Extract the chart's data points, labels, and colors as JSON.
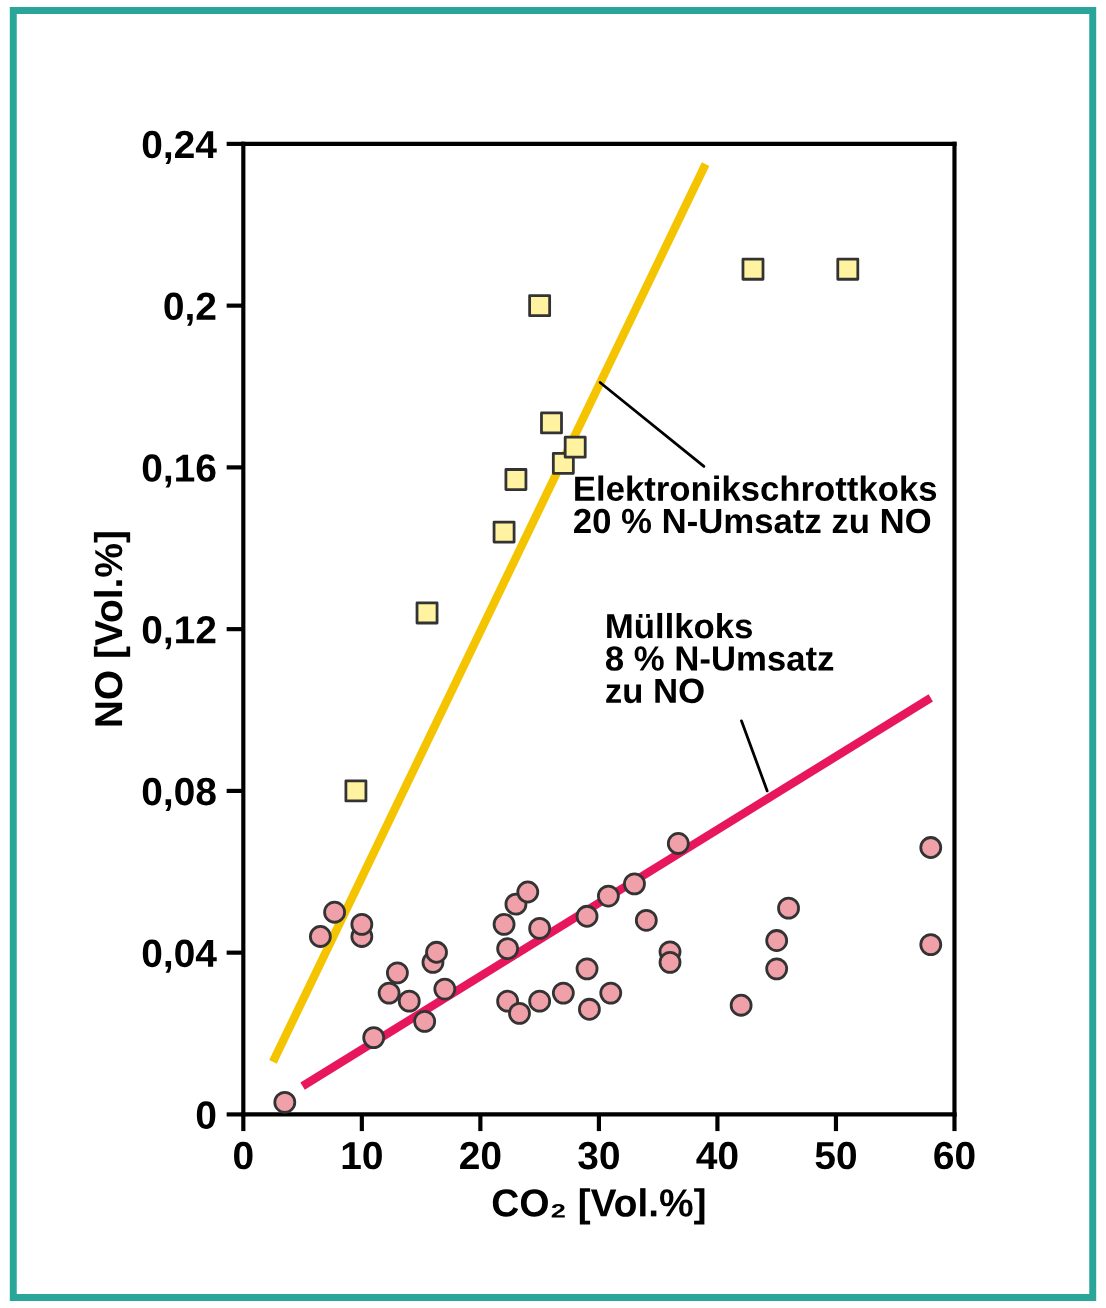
{
  "chart_data": {
    "type": "scatter",
    "xlabel": "CO₂ [Vol.%]",
    "ylabel": "NO [Vol.%]",
    "xlim": [
      0,
      60
    ],
    "ylim": [
      0,
      0.24
    ],
    "xticks": [
      0,
      10,
      20,
      30,
      40,
      50,
      60
    ],
    "yticks": [
      0,
      {
        "value": 0.04,
        "label": "0,04"
      },
      {
        "value": 0.08,
        "label": "0,08"
      },
      {
        "value": 0.12,
        "label": "0,12"
      },
      {
        "value": 0.16,
        "label": "0,16"
      },
      {
        "value": 0.2,
        "label": "0,2"
      },
      {
        "value": 0.24,
        "label": "0,24"
      }
    ],
    "grid": false,
    "legend": false,
    "series": [
      {
        "type": "line",
        "color": "#f5c400",
        "x": [
          2.5,
          39
        ],
        "values": [
          0.013,
          0.235
        ],
        "marker": "none"
      },
      {
        "type": "line",
        "color": "#e8175d",
        "x": [
          5,
          58
        ],
        "values": [
          0.007,
          0.103
        ],
        "marker": "none"
      },
      {
        "color": "#fff2a0",
        "marker": "square",
        "x": [
          9.5,
          15.5,
          22,
          23,
          25,
          26,
          27,
          28,
          43,
          51
        ],
        "values": [
          0.08,
          0.124,
          0.144,
          0.157,
          0.2,
          0.171,
          0.161,
          0.165,
          0.209,
          0.209
        ]
      },
      {
        "color": "#f0a0a8",
        "marker": "circle",
        "x": [
          3.5,
          6.5,
          7.7,
          10,
          10,
          11,
          12.3,
          13,
          14,
          15.3,
          16,
          16.3,
          17,
          22,
          22.3,
          22.3,
          23,
          23.3,
          24,
          25,
          25,
          27,
          29,
          29,
          29.2,
          30.8,
          31,
          33,
          34,
          36,
          36,
          36.7,
          42,
          45,
          45,
          46,
          58,
          58
        ],
        "values": [
          0.003,
          0.044,
          0.05,
          0.044,
          0.047,
          0.019,
          0.03,
          0.035,
          0.028,
          0.023,
          0.0376,
          0.0401,
          0.031,
          0.047,
          0.041,
          0.028,
          0.052,
          0.025,
          0.055,
          0.046,
          0.028,
          0.03,
          0.049,
          0.036,
          0.026,
          0.054,
          0.03,
          0.057,
          0.048,
          0.0402,
          0.0376,
          0.067,
          0.027,
          0.043,
          0.036,
          0.051,
          0.066,
          0.042
        ]
      }
    ],
    "annotations": [
      {
        "text": "Elektronikschrottkoks\n20 % N-Umsatz zu NO",
        "x": 30.1,
        "y": 0.181
      },
      {
        "text": "Müllkoks\n8 % N-Umsatz\nzu NO",
        "x": 44.2,
        "y": 0.08
      }
    ]
  }
}
